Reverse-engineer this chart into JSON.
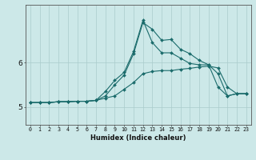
{
  "xlabel": "Humidex (Indice chaleur)",
  "ylabel": "",
  "background_color": "#cce8e8",
  "grid_color": "#aacccc",
  "line_color": "#1a6b6b",
  "x_values": [
    0,
    1,
    2,
    3,
    4,
    5,
    6,
    7,
    8,
    9,
    10,
    11,
    12,
    13,
    14,
    15,
    16,
    17,
    18,
    19,
    20,
    21,
    22,
    23
  ],
  "yticks": [
    5,
    6
  ],
  "ylim": [
    4.6,
    7.3
  ],
  "xlim": [
    -0.5,
    23.5
  ],
  "series": [
    [
      5.1,
      5.1,
      5.1,
      5.12,
      5.12,
      5.13,
      5.13,
      5.15,
      5.2,
      5.25,
      5.4,
      5.55,
      5.75,
      5.8,
      5.82,
      5.82,
      5.85,
      5.87,
      5.9,
      5.92,
      5.88,
      5.45,
      5.3,
      5.3
    ],
    [
      5.1,
      5.1,
      5.1,
      5.12,
      5.12,
      5.13,
      5.13,
      5.15,
      5.25,
      5.5,
      5.72,
      6.2,
      6.9,
      6.75,
      6.5,
      6.52,
      6.3,
      6.2,
      6.05,
      5.95,
      5.45,
      5.25,
      5.3,
      5.3
    ],
    [
      5.1,
      5.1,
      5.1,
      5.12,
      5.12,
      5.13,
      5.13,
      5.15,
      5.35,
      5.6,
      5.78,
      6.25,
      6.95,
      6.45,
      6.22,
      6.22,
      6.1,
      5.98,
      5.95,
      5.95,
      5.75,
      5.25,
      5.3,
      5.3
    ]
  ],
  "marker": "D",
  "marker_size": 2.0,
  "line_width": 0.8,
  "xlabel_fontsize": 6.0,
  "xtick_fontsize": 4.8,
  "ytick_fontsize": 6.5
}
